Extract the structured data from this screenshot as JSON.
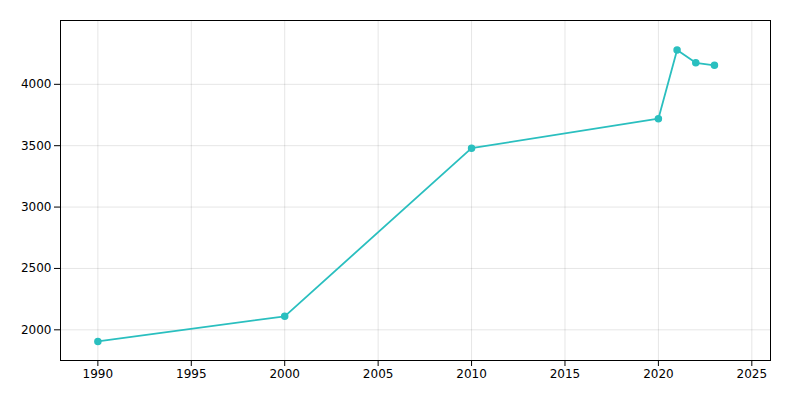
{
  "chart_data": {
    "type": "line",
    "x": [
      1990,
      2000,
      2010,
      2020,
      2021,
      2022,
      2023
    ],
    "values": [
      1905,
      2110,
      3480,
      3720,
      4280,
      4175,
      4155
    ],
    "color": "#2abfbf",
    "marker": "circle",
    "xlim": [
      1988,
      2026
    ],
    "ylim": [
      1750,
      4520
    ],
    "xticks": [
      1990,
      1995,
      2000,
      2005,
      2010,
      2015,
      2020,
      2025
    ],
    "yticks": [
      2000,
      2500,
      3000,
      3500,
      4000
    ],
    "grid": true
  }
}
